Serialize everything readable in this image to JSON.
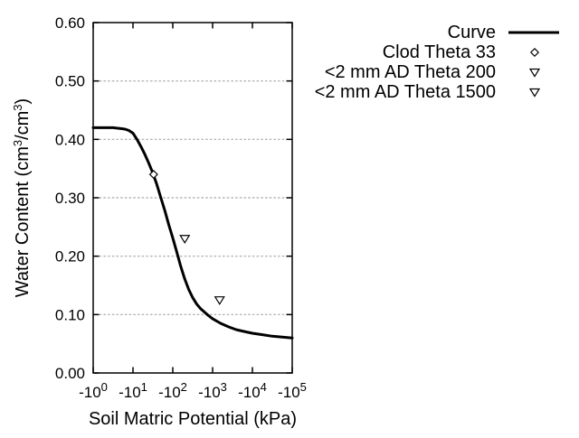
{
  "chart_data": {
    "type": "line",
    "title": "",
    "xlabel": "Soil Matric Potential (kPa)",
    "ylabel_parts": [
      {
        "text": "Water Content (cm"
      },
      {
        "sup": "3"
      },
      {
        "text": "/cm"
      },
      {
        "sup": "3"
      },
      {
        "text": ")"
      }
    ],
    "x_scale": "log",
    "x_ticks": [
      {
        "base": "-10",
        "exp": "0"
      },
      {
        "base": "-10",
        "exp": "1"
      },
      {
        "base": "-10",
        "exp": "2"
      },
      {
        "base": "-10",
        "exp": "3"
      },
      {
        "base": "-10",
        "exp": "4"
      },
      {
        "base": "-10",
        "exp": "5"
      }
    ],
    "y_ticks": [
      {
        "v": 0.0,
        "label": "0.00"
      },
      {
        "v": 0.1,
        "label": "0.10"
      },
      {
        "v": 0.2,
        "label": "0.20"
      },
      {
        "v": 0.3,
        "label": "0.30"
      },
      {
        "v": 0.4,
        "label": "0.40"
      },
      {
        "v": 0.5,
        "label": "0.50"
      },
      {
        "v": 0.6,
        "label": "0.60"
      }
    ],
    "ylim": [
      0,
      0.6
    ],
    "xlim_log10_abs_kpa": [
      0,
      5
    ],
    "grid": "horizontal-dotted",
    "legend_position": "outside-top-right",
    "series": [
      {
        "name": "Curve",
        "kind": "line",
        "marker": "line",
        "points": [
          [
            1,
            0.42
          ],
          [
            2,
            0.42
          ],
          [
            3.2,
            0.42
          ],
          [
            5,
            0.4185
          ],
          [
            6.3,
            0.4175
          ],
          [
            8,
            0.415
          ],
          [
            10,
            0.4105
          ],
          [
            12.6,
            0.4
          ],
          [
            15.8,
            0.388
          ],
          [
            20,
            0.374
          ],
          [
            25,
            0.359
          ],
          [
            31.6,
            0.342
          ],
          [
            40,
            0.322
          ],
          [
            50,
            0.3
          ],
          [
            63,
            0.278
          ],
          [
            79,
            0.254
          ],
          [
            100,
            0.231
          ],
          [
            126,
            0.207
          ],
          [
            158,
            0.183
          ],
          [
            200,
            0.161
          ],
          [
            251,
            0.143
          ],
          [
            316,
            0.129
          ],
          [
            398,
            0.118
          ],
          [
            501,
            0.11
          ],
          [
            631,
            0.104
          ],
          [
            794,
            0.098
          ],
          [
            1000,
            0.093
          ],
          [
            1585,
            0.085
          ],
          [
            2512,
            0.079
          ],
          [
            3981,
            0.074
          ],
          [
            6310,
            0.071
          ],
          [
            10000,
            0.068
          ],
          [
            17800,
            0.0655
          ],
          [
            31600,
            0.063
          ],
          [
            56200,
            0.0615
          ],
          [
            100000,
            0.06
          ]
        ]
      },
      {
        "name": "Clod Theta 33",
        "kind": "scatter",
        "marker": "diamond-open",
        "points": [
          [
            33,
            0.34
          ]
        ]
      },
      {
        "name": "<2 mm AD Theta 200",
        "kind": "scatter",
        "marker": "triangle-down-open",
        "points": [
          [
            200,
            0.23
          ]
        ]
      },
      {
        "name": "<2 mm AD Theta 1500",
        "kind": "scatter",
        "marker": "triangle-down-open",
        "points": [
          [
            1500,
            0.125
          ]
        ]
      }
    ]
  },
  "colors": {
    "foreground": "#000000",
    "grid": "#a6a6a6",
    "background": "#ffffff",
    "marker_fill": "#ffffff"
  }
}
